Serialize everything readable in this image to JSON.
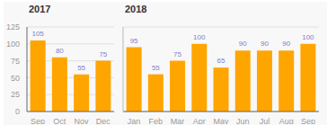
{
  "chart_data": [
    {
      "type": "bar",
      "title": "2017",
      "categories": [
        "Sep",
        "Oct",
        "Nov",
        "Dec"
      ],
      "values": [
        105,
        80,
        55,
        75
      ],
      "color": "#FFA500",
      "ylim": [
        0,
        125
      ],
      "yticks": [
        0,
        25,
        50,
        75,
        100,
        125
      ],
      "grid": true,
      "data_labels": true
    },
    {
      "type": "bar",
      "title": "2018",
      "categories": [
        "Jan",
        "Feb",
        "Mar",
        "Apr",
        "May",
        "Jun",
        "Jul",
        "Aug",
        "Sep"
      ],
      "values": [
        95,
        55,
        75,
        100,
        65,
        90,
        90,
        90,
        100
      ],
      "color": "#FFA500",
      "ylim": [
        0,
        125
      ],
      "yticks": [
        0,
        25,
        50,
        75,
        100,
        125
      ],
      "grid": true,
      "data_labels": true,
      "tick_labels": "x"
    }
  ]
}
